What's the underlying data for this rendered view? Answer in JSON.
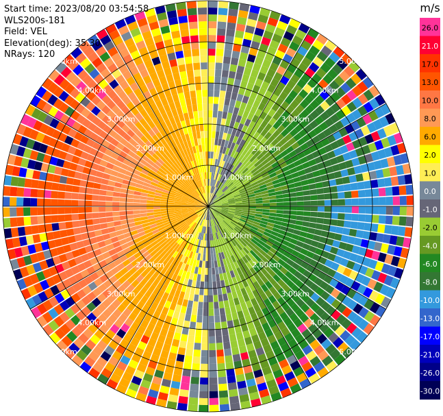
{
  "info": {
    "start_time": "Start time: 2023/08/20 03:54:58",
    "instrument": "WLS200s-181",
    "field": "Field: VEL",
    "elevation": "Elevation(deg): 35.30",
    "nrays": "NRays: 120"
  },
  "chart_data": {
    "type": "heatmap",
    "projection": "polar-ppi",
    "nrays": 120,
    "range_max_km": 5.0,
    "range_rings_km": [
      1,
      2,
      3,
      4,
      5
    ],
    "ring_labels": [
      "1.00km",
      "2.00km",
      "3.00km",
      "4.00km",
      "5.00km"
    ],
    "colorbar": {
      "unit": "m/s",
      "tick_labels": [
        "26.0",
        "21.0",
        "17.0",
        "13.0",
        "10.0",
        "8.0",
        "6.0",
        "2.0",
        "1.0",
        "0.0",
        "-1.0",
        "-2.0",
        "-4.0",
        "-6.0",
        "-8.0",
        "-10.0",
        "-13.0",
        "-17.0",
        "-21.0",
        "-26.0",
        "-30.0"
      ],
      "colors": [
        "#ff3399",
        "#ff0033",
        "#ff3300",
        "#ff5500",
        "#ff7744",
        "#ff9955",
        "#ffaa00",
        "#ffff00",
        "#ffee55",
        "#778899",
        "#666677",
        "#99cc33",
        "#669922",
        "#228822",
        "#337733",
        "#3399dd",
        "#3366cc",
        "#0000ff",
        "#0000bb",
        "#000088",
        "#000055"
      ]
    }
  }
}
